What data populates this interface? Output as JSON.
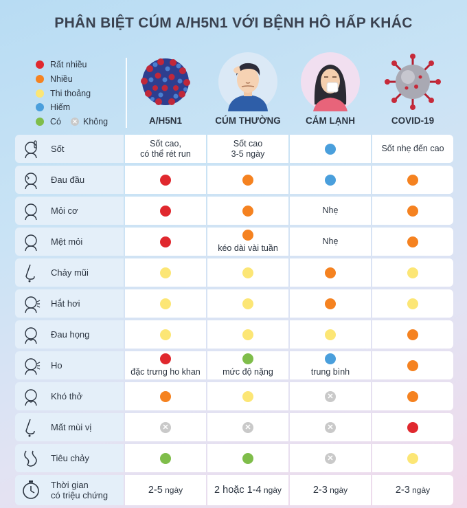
{
  "title": "PHÂN BIỆT CÚM A/H5N1 VỚI BỆNH HÔ HẤP KHÁC",
  "colors": {
    "red": "#e0282e",
    "orange": "#f58220",
    "yellow": "#fce675",
    "blue": "#4a9fdc",
    "green": "#7fbd4a",
    "gray": "#c9c9c9"
  },
  "legend": {
    "red": "Rất nhiều",
    "orange": "Nhiều",
    "yellow": "Thi thoảng",
    "blue": "Hiếm",
    "green": "Có",
    "none": "Không",
    "none_icon": "x-circle-icon"
  },
  "columns": [
    {
      "label": "A/H5N1",
      "icon": "h5n1-virus-icon"
    },
    {
      "label": "CÚM THƯỜNG",
      "icon": "flu-man-icon"
    },
    {
      "label": "CẢM LẠNH",
      "icon": "cold-woman-icon"
    },
    {
      "label": "COVID-19",
      "icon": "coronavirus-icon"
    }
  ],
  "rows": [
    {
      "label": "Sốt",
      "icon": "fever-icon",
      "cells": [
        {
          "text": "Sốt cao,",
          "text2": "có thể rét run"
        },
        {
          "text": "Sốt cao",
          "text2": "3-5 ngày"
        },
        {
          "dot": "blue"
        },
        {
          "text": "Sốt nhẹ đến cao"
        }
      ]
    },
    {
      "label": "Đau đầu",
      "icon": "headache-icon",
      "cells": [
        {
          "dot": "red"
        },
        {
          "dot": "orange"
        },
        {
          "dot": "blue"
        },
        {
          "dot": "orange"
        }
      ]
    },
    {
      "label": "Mỏi cơ",
      "icon": "muscle-ache-icon",
      "cells": [
        {
          "dot": "red"
        },
        {
          "dot": "orange"
        },
        {
          "text": "Nhẹ"
        },
        {
          "dot": "orange"
        }
      ]
    },
    {
      "label": "Mệt mỏi",
      "icon": "fatigue-icon",
      "cells": [
        {
          "dot": "red"
        },
        {
          "dot": "orange",
          "text2": "kéo dài vài tuần"
        },
        {
          "text": "Nhẹ"
        },
        {
          "dot": "orange"
        }
      ]
    },
    {
      "label": "Chảy mũi",
      "icon": "runny-nose-icon",
      "cells": [
        {
          "dot": "yellow"
        },
        {
          "dot": "yellow"
        },
        {
          "dot": "orange"
        },
        {
          "dot": "yellow"
        }
      ]
    },
    {
      "label": "Hắt hơi",
      "icon": "sneeze-icon",
      "cells": [
        {
          "dot": "yellow"
        },
        {
          "dot": "yellow"
        },
        {
          "dot": "orange"
        },
        {
          "dot": "yellow"
        }
      ]
    },
    {
      "label": "Đau họng",
      "icon": "sore-throat-icon",
      "cells": [
        {
          "dot": "yellow"
        },
        {
          "dot": "yellow"
        },
        {
          "dot": "yellow"
        },
        {
          "dot": "orange"
        }
      ]
    },
    {
      "label": "Ho",
      "icon": "cough-icon",
      "cells": [
        {
          "dot": "red",
          "text2": "đặc trưng ho khan"
        },
        {
          "dot": "green",
          "text2": "mức độ nặng"
        },
        {
          "dot": "blue",
          "text2": "trung bình"
        },
        {
          "dot": "orange"
        }
      ]
    },
    {
      "label": "Khó thở",
      "icon": "breathless-icon",
      "cells": [
        {
          "dot": "orange"
        },
        {
          "dot": "yellow"
        },
        {
          "dot": "none"
        },
        {
          "dot": "orange"
        }
      ]
    },
    {
      "label": "Mất mùi vị",
      "icon": "loss-of-smell-icon",
      "cells": [
        {
          "dot": "none"
        },
        {
          "dot": "none"
        },
        {
          "dot": "none"
        },
        {
          "dot": "red"
        }
      ]
    },
    {
      "label": "Tiêu chảy",
      "icon": "diarrhea-icon",
      "cells": [
        {
          "dot": "green"
        },
        {
          "dot": "green"
        },
        {
          "dot": "none"
        },
        {
          "dot": "yellow"
        }
      ]
    },
    {
      "label": "Thời gian",
      "label2": "có triệu chứng",
      "icon": "stopwatch-icon",
      "cells": [
        {
          "big": "2-5",
          "small": " ngày"
        },
        {
          "big": "2 hoặc 1-4",
          "small": " ngày"
        },
        {
          "big": "2-3",
          "small": " ngày"
        },
        {
          "big": "2-3",
          "small": " ngày"
        }
      ]
    }
  ]
}
